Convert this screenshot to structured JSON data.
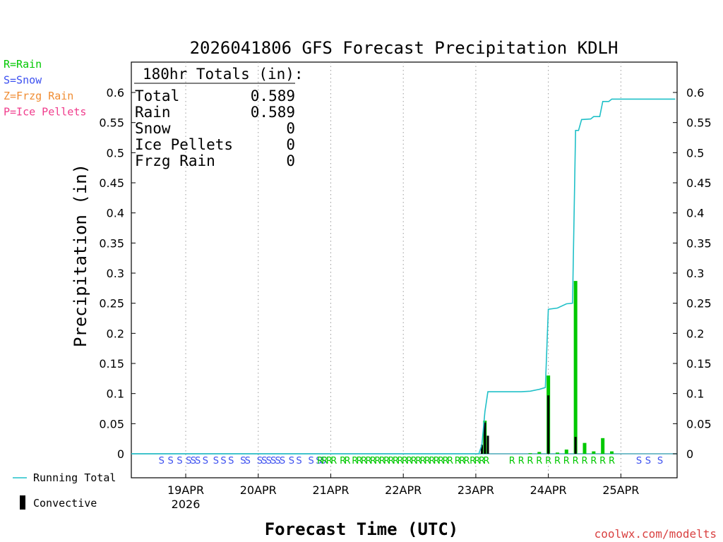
{
  "chart_data": {
    "type": "bar",
    "title": "2026041806 GFS Forecast Precipitation KDLH",
    "xlabel": "Forecast Time (UTC)",
    "ylabel": "Precipitation (in)",
    "ylim": [
      -0.035,
      0.64
    ],
    "yticks": [
      "0",
      "0.05",
      "0.1",
      "0.15",
      "0.2",
      "0.25",
      "0.3",
      "0.35",
      "0.4",
      "0.45",
      "0.5",
      "0.55",
      "0.6"
    ],
    "x_unit": "forecast hour from 2026041806",
    "xlim": [
      0,
      180
    ],
    "date_ticks": [
      {
        "hour": 18,
        "label": "19APR",
        "sub": "2026"
      },
      {
        "hour": 42,
        "label": "20APR",
        "sub": ""
      },
      {
        "hour": 66,
        "label": "21APR",
        "sub": ""
      },
      {
        "hour": 90,
        "label": "22APR",
        "sub": ""
      },
      {
        "hour": 114,
        "label": "23APR",
        "sub": ""
      },
      {
        "hour": 138,
        "label": "24APR",
        "sub": ""
      },
      {
        "hour": 162,
        "label": "25APR",
        "sub": ""
      }
    ],
    "precip_type_legend": [
      {
        "label": "R=Rain",
        "color": "#00c800"
      },
      {
        "label": "S=Snow",
        "color": "#3c50f0"
      },
      {
        "label": "Z=Frzg Rain",
        "color": "#f08c32"
      },
      {
        "label": "P=Ice Pellets",
        "color": "#f03c8c"
      }
    ],
    "series": [
      {
        "name": "Rain (3-hr)",
        "color": "#00c800",
        "points": [
          {
            "hour": 117,
            "value": 0.055
          },
          {
            "hour": 132,
            "value": 0.001
          },
          {
            "hour": 135,
            "value": 0.003
          },
          {
            "hour": 138,
            "value": 0.13
          },
          {
            "hour": 141,
            "value": 0.002
          },
          {
            "hour": 144,
            "value": 0.007
          },
          {
            "hour": 147,
            "value": 0.287
          },
          {
            "hour": 150,
            "value": 0.018
          },
          {
            "hour": 153,
            "value": 0.004
          },
          {
            "hour": 156,
            "value": 0.026
          },
          {
            "hour": 159,
            "value": 0.004
          }
        ]
      },
      {
        "name": "Convective",
        "color": "#000000",
        "points": [
          {
            "hour": 116,
            "value": 0.015
          },
          {
            "hour": 117,
            "value": 0.052
          },
          {
            "hour": 118,
            "value": 0.03
          },
          {
            "hour": 138,
            "value": 0.097
          },
          {
            "hour": 147,
            "value": 0.028
          }
        ]
      },
      {
        "name": "Running Total",
        "color": "#20c0c8",
        "points": [
          {
            "hour": 0,
            "value": 0
          },
          {
            "hour": 115,
            "value": 0
          },
          {
            "hour": 116,
            "value": 0.015
          },
          {
            "hour": 117,
            "value": 0.07
          },
          {
            "hour": 118,
            "value": 0.103
          },
          {
            "hour": 120,
            "value": 0.103
          },
          {
            "hour": 129,
            "value": 0.103
          },
          {
            "hour": 132,
            "value": 0.104
          },
          {
            "hour": 135,
            "value": 0.107
          },
          {
            "hour": 137,
            "value": 0.11
          },
          {
            "hour": 138,
            "value": 0.24
          },
          {
            "hour": 141,
            "value": 0.242
          },
          {
            "hour": 144,
            "value": 0.249
          },
          {
            "hour": 146,
            "value": 0.25
          },
          {
            "hour": 147,
            "value": 0.537
          },
          {
            "hour": 148,
            "value": 0.537
          },
          {
            "hour": 149,
            "value": 0.555
          },
          {
            "hour": 152,
            "value": 0.556
          },
          {
            "hour": 153,
            "value": 0.56
          },
          {
            "hour": 155,
            "value": 0.56
          },
          {
            "hour": 156,
            "value": 0.585
          },
          {
            "hour": 158,
            "value": 0.585
          },
          {
            "hour": 159,
            "value": 0.589
          },
          {
            "hour": 180,
            "value": 0.589
          }
        ]
      }
    ],
    "precip_type_markers": {
      "snow_hours": [
        10,
        13,
        16,
        19,
        20.5,
        22,
        24.5,
        28,
        30.5,
        33,
        37,
        38.5,
        42.5,
        44,
        45.5,
        47,
        48.5,
        50,
        53,
        55.5,
        59.5,
        62,
        63.5
      ],
      "rain_hours": [
        62.5,
        64,
        65.5,
        67,
        70,
        71.5,
        74,
        75.5,
        77,
        78.5,
        80,
        81.5,
        83,
        84.5,
        86,
        87.5,
        89,
        90.5,
        92,
        93.5,
        95,
        96.5,
        98,
        99.5,
        101,
        102.5,
        104,
        105.5,
        108,
        109.5,
        111,
        113,
        114.5,
        116,
        117.5,
        126,
        129,
        132,
        135,
        138,
        141,
        144,
        147,
        150,
        153,
        156,
        159
      ],
      "snow_hours_late": [
        168,
        171,
        175
      ],
      "rain_mark": "R",
      "snow_mark": "S"
    },
    "totals_box": {
      "header": "180hr Totals (in):",
      "rows": [
        {
          "label": "Total",
          "value": "0.589"
        },
        {
          "label": "Rain",
          "value": "0.589"
        },
        {
          "label": "Snow",
          "value": "0"
        },
        {
          "label": "Ice Pellets",
          "value": "0"
        },
        {
          "label": "Frzg Rain",
          "value": "0"
        }
      ]
    },
    "bottom_legend": [
      {
        "label": "Running Total",
        "kind": "line",
        "color": "#20c0c8"
      },
      {
        "label": "Convective",
        "kind": "bar",
        "color": "#000000"
      }
    ],
    "credit": "coolwx.com/modelts"
  }
}
